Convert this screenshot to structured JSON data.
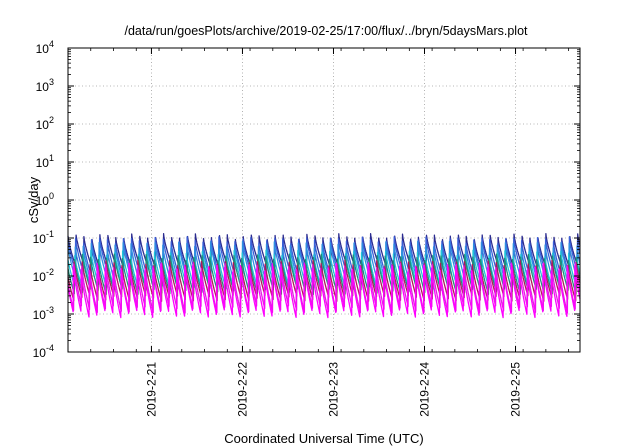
{
  "chart_data": {
    "type": "line",
    "title": "/data/run/goesPlots/archive/2019-02-25/17:00/flux/../bryn/5daysMars.plot",
    "xlabel": "Coordinated Universal Time (UTC)",
    "ylabel": "cSv/day",
    "y_scale": "log",
    "ylim": [
      0.0001,
      10000
    ],
    "x_range": [
      "2019-02-20T02:00",
      "2019-02-25T17:00"
    ],
    "grid": true,
    "y_ticks": [
      {
        "base": "10",
        "exp": "-4"
      },
      {
        "base": "10",
        "exp": "-3"
      },
      {
        "base": "10",
        "exp": "-2"
      },
      {
        "base": "10",
        "exp": "-1"
      },
      {
        "base": "10",
        "exp": "0"
      },
      {
        "base": "10",
        "exp": "1"
      },
      {
        "base": "10",
        "exp": "2"
      },
      {
        "base": "10",
        "exp": "3"
      },
      {
        "base": "10",
        "exp": "4"
      }
    ],
    "x_ticks": [
      "2019-2-21",
      "2019-2-22",
      "2019-2-23",
      "2019-2-24",
      "2019-2-25"
    ],
    "x_tick_dates": [
      "2019-02-21",
      "2019-02-22",
      "2019-02-23",
      "2019-02-24",
      "2019-02-25"
    ],
    "sawtooth_period_hours": 2.1,
    "series": [
      {
        "color": "#2b2b8f",
        "peak": 0.13,
        "trough": 0.02
      },
      {
        "color": "#3a5fd8",
        "peak": 0.11,
        "trough": 0.013
      },
      {
        "color": "#2f8fe0",
        "peak": 0.085,
        "trough": 0.009
      },
      {
        "color": "#1fc6d8",
        "peak": 0.05,
        "trough": 0.006
      },
      {
        "color": "#1f8f7a",
        "peak": 0.04,
        "trough": 0.0045
      },
      {
        "color": "#b0185a",
        "peak": 0.028,
        "trough": 0.003
      },
      {
        "color": "#e020e0",
        "peak": 0.025,
        "trough": 0.0016
      },
      {
        "color": "#ff00ff",
        "peak": 0.022,
        "trough": 0.0012
      }
    ],
    "colors": {
      "frame": "#000000",
      "grid": "#a0a0a0"
    }
  }
}
